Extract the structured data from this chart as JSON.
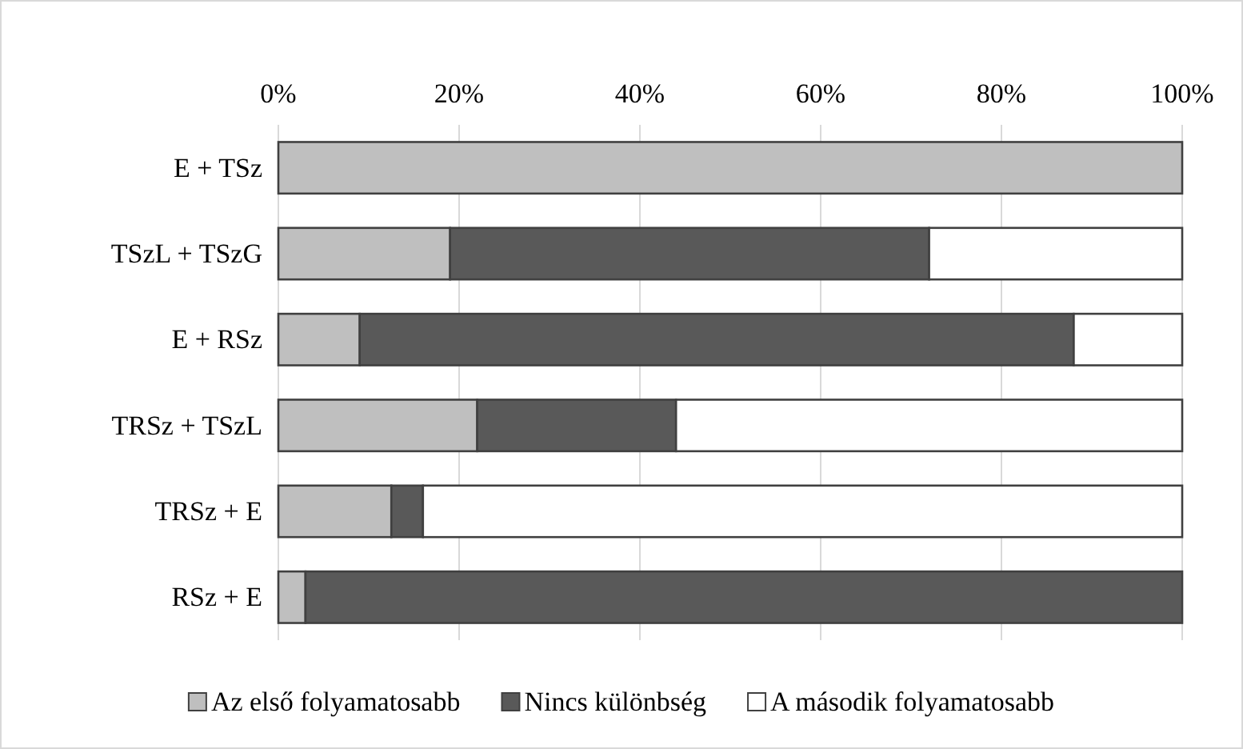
{
  "chart_data": {
    "type": "bar",
    "orientation": "horizontal",
    "stacked": true,
    "categories": [
      "E + TSz",
      "TSzL + TSzG",
      "E + RSz",
      "TRSz + TSzL",
      "TRSz + E",
      "RSz + E"
    ],
    "series": [
      {
        "name": "Az első folyamatosabb",
        "color": "#bfbfbf",
        "values": [
          100,
          19,
          9,
          22,
          12.5,
          3
        ]
      },
      {
        "name": "Nincs különbség",
        "color": "#595959",
        "values": [
          0,
          53,
          79,
          22,
          3.5,
          97
        ]
      },
      {
        "name": "A második folyamatosabb",
        "color": "#ffffff",
        "values": [
          0,
          28,
          12,
          56,
          84,
          0
        ]
      }
    ],
    "xlim": [
      0,
      100
    ],
    "xticks": [
      {
        "value": 0,
        "label": "0%"
      },
      {
        "value": 20,
        "label": "20%"
      },
      {
        "value": 40,
        "label": "40%"
      },
      {
        "value": 60,
        "label": "60%"
      },
      {
        "value": 80,
        "label": "80%"
      },
      {
        "value": 100,
        "label": "100%"
      }
    ],
    "grid": "x",
    "legend": "bottom"
  }
}
